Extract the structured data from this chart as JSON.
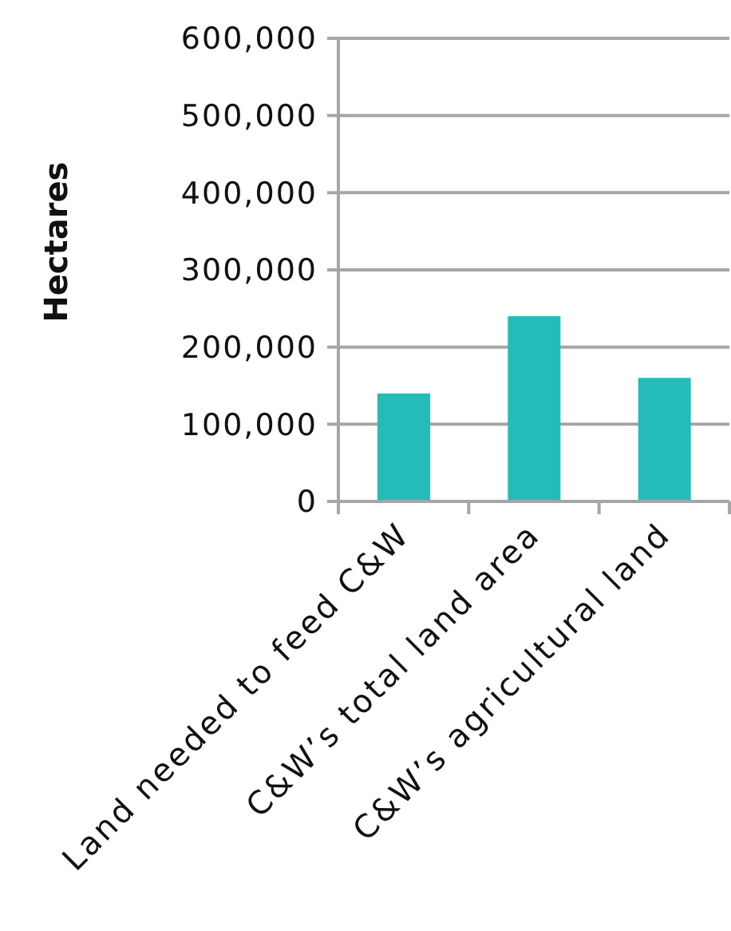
{
  "chart_data": {
    "type": "bar",
    "ylabel": "Hectares",
    "categories": [
      "Land needed to feed C&W",
      "C&W’s total land area",
      "C&W’s agricultural land"
    ],
    "values": [
      140000,
      240000,
      160000
    ],
    "color": "#23bcb9",
    "ylim": [
      0,
      600000
    ],
    "yticks": [
      0,
      {
        "value": 100000,
        "label": "100,000"
      },
      {
        "value": 200000,
        "label": "200,000"
      },
      {
        "value": 300000,
        "label": "300,000"
      },
      {
        "value": 400000,
        "label": "400,000"
      },
      {
        "value": 500000,
        "label": "500,000"
      },
      {
        "value": 600000,
        "label": "600,000"
      }
    ],
    "grid": "y"
  }
}
